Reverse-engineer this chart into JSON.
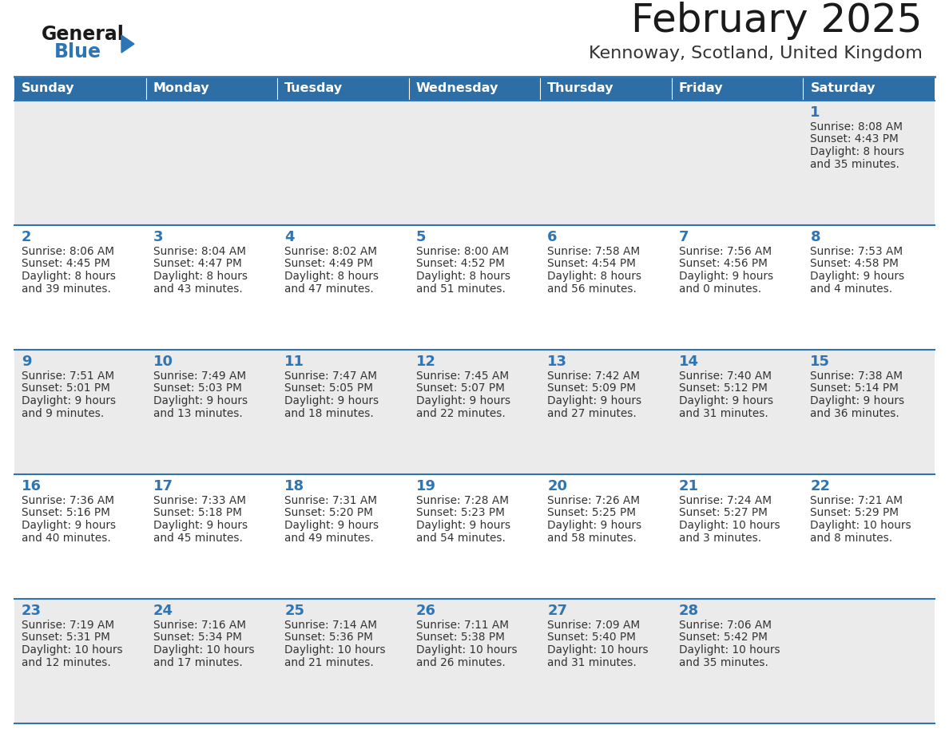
{
  "title": "February 2025",
  "subtitle": "Kennoway, Scotland, United Kingdom",
  "header_bg": "#2E6EA6",
  "header_text_color": "#FFFFFF",
  "cell_bg_even": "#EBEBEB",
  "cell_bg_odd": "#FFFFFF",
  "day_headers": [
    "Sunday",
    "Monday",
    "Tuesday",
    "Wednesday",
    "Thursday",
    "Friday",
    "Saturday"
  ],
  "title_color": "#1a1a1a",
  "subtitle_color": "#333333",
  "cell_border_color": "#2E75B6",
  "day_number_color": "#2E75B6",
  "cell_text_color": "#333333",
  "logo_general_color": "#1a1a1a",
  "logo_blue_color": "#2E75B6",
  "weeks": [
    [
      null,
      null,
      null,
      null,
      null,
      null,
      {
        "day": 1,
        "sunrise": "8:08 AM",
        "sunset": "4:43 PM",
        "daylight": "8 hours",
        "daylight2": "and 35 minutes."
      }
    ],
    [
      {
        "day": 2,
        "sunrise": "8:06 AM",
        "sunset": "4:45 PM",
        "daylight": "8 hours",
        "daylight2": "and 39 minutes."
      },
      {
        "day": 3,
        "sunrise": "8:04 AM",
        "sunset": "4:47 PM",
        "daylight": "8 hours",
        "daylight2": "and 43 minutes."
      },
      {
        "day": 4,
        "sunrise": "8:02 AM",
        "sunset": "4:49 PM",
        "daylight": "8 hours",
        "daylight2": "and 47 minutes."
      },
      {
        "day": 5,
        "sunrise": "8:00 AM",
        "sunset": "4:52 PM",
        "daylight": "8 hours",
        "daylight2": "and 51 minutes."
      },
      {
        "day": 6,
        "sunrise": "7:58 AM",
        "sunset": "4:54 PM",
        "daylight": "8 hours",
        "daylight2": "and 56 minutes."
      },
      {
        "day": 7,
        "sunrise": "7:56 AM",
        "sunset": "4:56 PM",
        "daylight": "9 hours",
        "daylight2": "and 0 minutes."
      },
      {
        "day": 8,
        "sunrise": "7:53 AM",
        "sunset": "4:58 PM",
        "daylight": "9 hours",
        "daylight2": "and 4 minutes."
      }
    ],
    [
      {
        "day": 9,
        "sunrise": "7:51 AM",
        "sunset": "5:01 PM",
        "daylight": "9 hours",
        "daylight2": "and 9 minutes."
      },
      {
        "day": 10,
        "sunrise": "7:49 AM",
        "sunset": "5:03 PM",
        "daylight": "9 hours",
        "daylight2": "and 13 minutes."
      },
      {
        "day": 11,
        "sunrise": "7:47 AM",
        "sunset": "5:05 PM",
        "daylight": "9 hours",
        "daylight2": "and 18 minutes."
      },
      {
        "day": 12,
        "sunrise": "7:45 AM",
        "sunset": "5:07 PM",
        "daylight": "9 hours",
        "daylight2": "and 22 minutes."
      },
      {
        "day": 13,
        "sunrise": "7:42 AM",
        "sunset": "5:09 PM",
        "daylight": "9 hours",
        "daylight2": "and 27 minutes."
      },
      {
        "day": 14,
        "sunrise": "7:40 AM",
        "sunset": "5:12 PM",
        "daylight": "9 hours",
        "daylight2": "and 31 minutes."
      },
      {
        "day": 15,
        "sunrise": "7:38 AM",
        "sunset": "5:14 PM",
        "daylight": "9 hours",
        "daylight2": "and 36 minutes."
      }
    ],
    [
      {
        "day": 16,
        "sunrise": "7:36 AM",
        "sunset": "5:16 PM",
        "daylight": "9 hours",
        "daylight2": "and 40 minutes."
      },
      {
        "day": 17,
        "sunrise": "7:33 AM",
        "sunset": "5:18 PM",
        "daylight": "9 hours",
        "daylight2": "and 45 minutes."
      },
      {
        "day": 18,
        "sunrise": "7:31 AM",
        "sunset": "5:20 PM",
        "daylight": "9 hours",
        "daylight2": "and 49 minutes."
      },
      {
        "day": 19,
        "sunrise": "7:28 AM",
        "sunset": "5:23 PM",
        "daylight": "9 hours",
        "daylight2": "and 54 minutes."
      },
      {
        "day": 20,
        "sunrise": "7:26 AM",
        "sunset": "5:25 PM",
        "daylight": "9 hours",
        "daylight2": "and 58 minutes."
      },
      {
        "day": 21,
        "sunrise": "7:24 AM",
        "sunset": "5:27 PM",
        "daylight": "10 hours",
        "daylight2": "and 3 minutes."
      },
      {
        "day": 22,
        "sunrise": "7:21 AM",
        "sunset": "5:29 PM",
        "daylight": "10 hours",
        "daylight2": "and 8 minutes."
      }
    ],
    [
      {
        "day": 23,
        "sunrise": "7:19 AM",
        "sunset": "5:31 PM",
        "daylight": "10 hours",
        "daylight2": "and 12 minutes."
      },
      {
        "day": 24,
        "sunrise": "7:16 AM",
        "sunset": "5:34 PM",
        "daylight": "10 hours",
        "daylight2": "and 17 minutes."
      },
      {
        "day": 25,
        "sunrise": "7:14 AM",
        "sunset": "5:36 PM",
        "daylight": "10 hours",
        "daylight2": "and 21 minutes."
      },
      {
        "day": 26,
        "sunrise": "7:11 AM",
        "sunset": "5:38 PM",
        "daylight": "10 hours",
        "daylight2": "and 26 minutes."
      },
      {
        "day": 27,
        "sunrise": "7:09 AM",
        "sunset": "5:40 PM",
        "daylight": "10 hours",
        "daylight2": "and 31 minutes."
      },
      {
        "day": 28,
        "sunrise": "7:06 AM",
        "sunset": "5:42 PM",
        "daylight": "10 hours",
        "daylight2": "and 35 minutes."
      },
      null
    ]
  ]
}
